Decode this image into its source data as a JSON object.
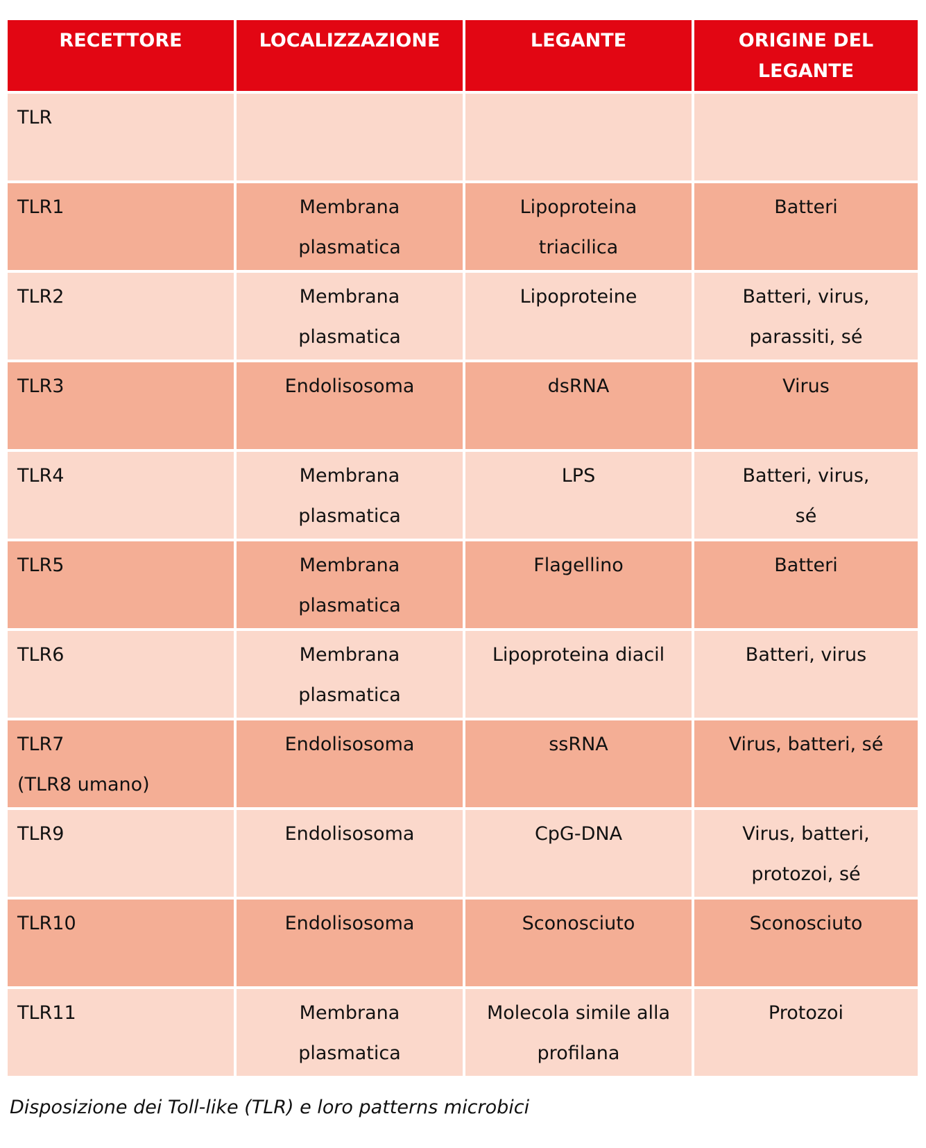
{
  "table": {
    "headers": [
      "RECETTORE",
      "LOCALIZZAZIONE",
      "LEGANTE",
      "ORIGINE DEL\nLEGANTE"
    ],
    "rows": [
      [
        "TLR",
        "",
        "",
        ""
      ],
      [
        "TLR1",
        "Membrana\nplasmatica",
        "Lipoproteina\ntriacilica",
        "Batteri"
      ],
      [
        "TLR2",
        "Membrana\nplasmatica",
        "Lipoproteine",
        "Batteri, virus,\nparassiti, sé"
      ],
      [
        "TLR3",
        "Endolisosoma",
        "dsRNA",
        "Virus"
      ],
      [
        "TLR4",
        "Membrana\nplasmatica",
        "LPS",
        "Batteri, virus,\nsé"
      ],
      [
        "TLR5",
        "Membrana\nplasmatica",
        "Flagellino",
        "Batteri"
      ],
      [
        "TLR6",
        "Membrana\nplasmatica",
        "Lipoproteina diacil",
        "Batteri, virus"
      ],
      [
        "TLR7\n(TLR8 umano)",
        "Endolisosoma",
        "ssRNA",
        "Virus, batteri, sé"
      ],
      [
        "TLR9",
        "Endolisosoma",
        "CpG-DNA",
        "Virus, batteri,\nprotozoi, sé"
      ],
      [
        "TLR10",
        "Endolisosoma",
        "Sconosciuto",
        "Sconosciuto"
      ],
      [
        "TLR11",
        "Membrana\nplasmatica",
        "Molecola simile alla\nprofilana",
        "Protozoi"
      ]
    ]
  },
  "colors": {
    "header": "#E20613",
    "row_light": "#FBD8CB",
    "row_dark": "#F4AE95"
  },
  "caption": "Disposizione dei Toll-like (TLR) e loro patterns microbici"
}
